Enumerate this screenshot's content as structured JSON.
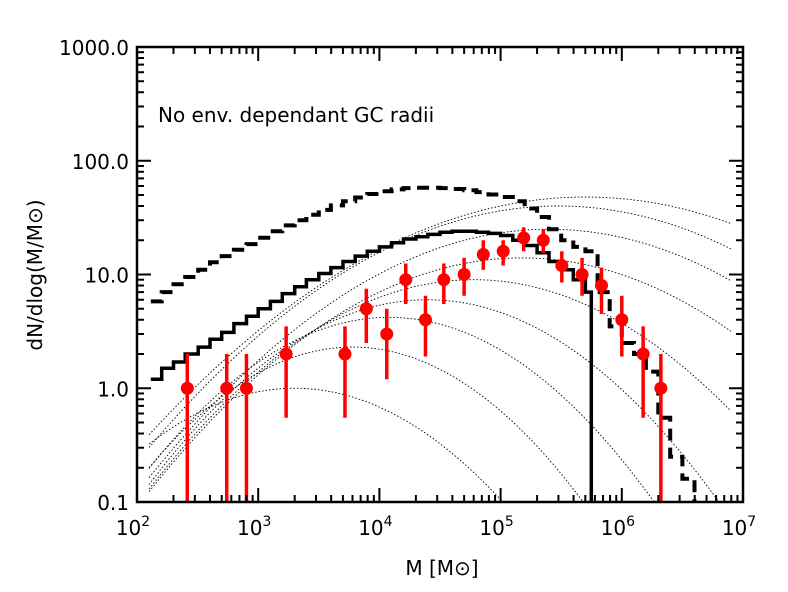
{
  "chart_data": {
    "type": "scatter",
    "title": "",
    "xlabel": "M [M⊙]",
    "ylabel": "dN/dlog(M/M⊙)",
    "xscale": "log",
    "yscale": "log",
    "xlim": [
      100,
      10000000
    ],
    "ylim": [
      0.1,
      1000
    ],
    "x_tick_labels": [
      {
        "base": "10",
        "exp": "2"
      },
      {
        "base": "10",
        "exp": "3"
      },
      {
        "base": "10",
        "exp": "4"
      },
      {
        "base": "10",
        "exp": "5"
      },
      {
        "base": "10",
        "exp": "6"
      },
      {
        "base": "10",
        "exp": "7"
      }
    ],
    "y_tick_labels": [
      "0.1",
      "1.0",
      "10.0",
      "100.0",
      "1000.0"
    ],
    "annotation": "No env. dependant GC radii",
    "grid": false,
    "colors": {
      "points": "#ff0000",
      "lines": "#000000"
    },
    "series": [
      {
        "style": "red-points-with-errorbars",
        "points": [
          {
            "x": 260,
            "y": 1.0,
            "ylo": 0.1,
            "yhi": 2.0
          },
          {
            "x": 550,
            "y": 1.0,
            "ylo": 0.1,
            "yhi": 2.0
          },
          {
            "x": 800,
            "y": 1.0,
            "ylo": 0.1,
            "yhi": 2.0
          },
          {
            "x": 1700,
            "y": 2.0,
            "ylo": 0.55,
            "yhi": 3.5
          },
          {
            "x": 5200,
            "y": 2.0,
            "ylo": 0.55,
            "yhi": 3.5
          },
          {
            "x": 7800,
            "y": 5.0,
            "ylo": 2.5,
            "yhi": 7.5
          },
          {
            "x": 11500,
            "y": 3.0,
            "ylo": 1.2,
            "yhi": 5.0
          },
          {
            "x": 16500,
            "y": 9.0,
            "ylo": 5.5,
            "yhi": 12.5
          },
          {
            "x": 24000,
            "y": 4.0,
            "ylo": 1.9,
            "yhi": 6.5
          },
          {
            "x": 34000,
            "y": 9.0,
            "ylo": 5.5,
            "yhi": 12.5
          },
          {
            "x": 50000,
            "y": 10.0,
            "ylo": 6.5,
            "yhi": 14.0
          },
          {
            "x": 72000,
            "y": 15.0,
            "ylo": 11.0,
            "yhi": 20.0
          },
          {
            "x": 105000,
            "y": 16.0,
            "ylo": 12.0,
            "yhi": 20.0
          },
          {
            "x": 155000,
            "y": 21.0,
            "ylo": 16.0,
            "yhi": 26.0
          },
          {
            "x": 225000,
            "y": 20.0,
            "ylo": 15.5,
            "yhi": 25.0
          },
          {
            "x": 320000,
            "y": 12.0,
            "ylo": 8.5,
            "yhi": 16.0
          },
          {
            "x": 470000,
            "y": 10.0,
            "ylo": 6.5,
            "yhi": 14.0
          },
          {
            "x": 680000,
            "y": 8.0,
            "ylo": 4.5,
            "yhi": 11.5
          },
          {
            "x": 1000000,
            "y": 4.0,
            "ylo": 1.9,
            "yhi": 6.5
          },
          {
            "x": 1500000,
            "y": 2.0,
            "ylo": 0.55,
            "yhi": 3.5
          },
          {
            "x": 2100000,
            "y": 1.0,
            "ylo": 0.1,
            "yhi": 2.0
          }
        ]
      },
      {
        "style": "solid-step",
        "x": [
          130,
          160,
          200,
          250,
          320,
          400,
          500,
          630,
          800,
          1000,
          1260,
          1580,
          2000,
          2500,
          3160,
          3980,
          5010,
          6310,
          7940,
          10000,
          12600,
          15800,
          20000,
          25100,
          31600,
          39800,
          50100,
          63100,
          79400,
          100000,
          126000,
          158000,
          200000,
          251000,
          316000,
          398000,
          501000,
          560000
        ],
        "y": [
          1.2,
          1.5,
          1.7,
          2.0,
          2.3,
          2.7,
          3.1,
          3.7,
          4.3,
          5.0,
          5.8,
          6.8,
          7.8,
          9.0,
          10.2,
          11.5,
          13.0,
          14.5,
          16.0,
          17.5,
          19.0,
          20.5,
          21.5,
          22.5,
          23.5,
          24.0,
          24.0,
          23.5,
          23.0,
          22.0,
          20.0,
          18.0,
          15.5,
          13.0,
          11.0,
          9.0,
          7.0,
          0.1
        ]
      },
      {
        "style": "dashed-step",
        "x": [
          130,
          160,
          200,
          250,
          320,
          400,
          500,
          630,
          800,
          1000,
          1260,
          1580,
          2000,
          2500,
          3160,
          3980,
          5010,
          6310,
          7940,
          10000,
          12600,
          15800,
          20000,
          25100,
          31600,
          39800,
          50100,
          63100,
          79400,
          100000,
          126000,
          158000,
          200000,
          251000,
          316000,
          398000,
          501000,
          631000,
          794000,
          1000000,
          1260000,
          1580000,
          2000000,
          2510000,
          3160000,
          3980000
        ],
        "y": [
          5.8,
          7.0,
          8.2,
          9.5,
          11.0,
          12.8,
          14.5,
          16.5,
          18.5,
          21.0,
          24.0,
          27.0,
          30.0,
          33.5,
          37.0,
          40.5,
          44.0,
          47.5,
          51.0,
          54.0,
          56.0,
          57.5,
          58.0,
          58.0,
          57.5,
          56.5,
          55.0,
          53.0,
          50.5,
          48.0,
          44.0,
          38.0,
          32.0,
          25.0,
          20.0,
          17.5,
          16.0,
          7.0,
          3.5,
          2.5,
          2.0,
          1.4,
          0.55,
          0.25,
          0.16,
          0.1
        ]
      },
      {
        "style": "dotted-model-curves",
        "curves": [
          {
            "peak_x": 2000,
            "peak_y": 1.0,
            "width": 1.0
          },
          {
            "peak_x": 6000,
            "peak_y": 2.3,
            "width": 0.95
          },
          {
            "peak_x": 12000,
            "peak_y": 4.2,
            "width": 1.0
          },
          {
            "peak_x": 25000,
            "peak_y": 6.0,
            "width": 1.05
          },
          {
            "peak_x": 60000,
            "peak_y": 9.0,
            "width": 1.15
          },
          {
            "peak_x": 150000,
            "peak_y": 14.0,
            "width": 1.25
          },
          {
            "peak_x": 250000,
            "peak_y": 25.0,
            "width": 1.3
          },
          {
            "peak_x": 300000,
            "peak_y": 40.0,
            "width": 1.35
          },
          {
            "peak_x": 500000,
            "peak_y": 48.0,
            "width": 1.45
          }
        ]
      }
    ]
  }
}
